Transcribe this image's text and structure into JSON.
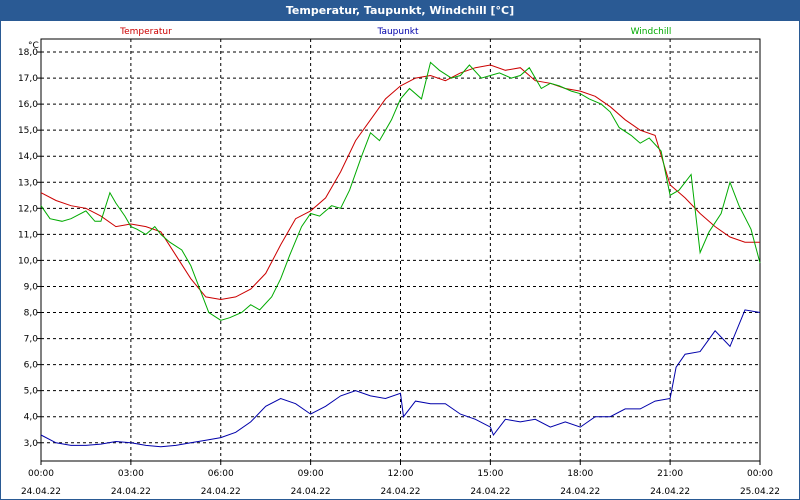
{
  "window": {
    "title": "Temperatur, Taupunkt, Windchill [°C]"
  },
  "chart_data": {
    "type": "line",
    "title": "Temperatur, Taupunkt, Windchill [°C]",
    "ylabel": "°C",
    "xlabel": "",
    "ylim": [
      2.3,
      18.5
    ],
    "xlim": [
      0,
      24
    ],
    "grid": true,
    "y_ticks": [
      "3,0",
      "4,0",
      "5,0",
      "6,0",
      "7,0",
      "8,0",
      "9,0",
      "10,0",
      "11,0",
      "12,0",
      "13,0",
      "14,0",
      "15,0",
      "16,0",
      "17,0",
      "18,0"
    ],
    "x_ticks": [
      {
        "time": "00:00",
        "date": "24.04.22"
      },
      {
        "time": "03:00",
        "date": "24.04.22"
      },
      {
        "time": "06:00",
        "date": "24.04.22"
      },
      {
        "time": "09:00",
        "date": "24.04.22"
      },
      {
        "time": "12:00",
        "date": "24.04.22"
      },
      {
        "time": "15:00",
        "date": "24.04.22"
      },
      {
        "time": "18:00",
        "date": "24.04.22"
      },
      {
        "time": "21:00",
        "date": "24.04.22"
      },
      {
        "time": "00:00",
        "date": "25.04.22"
      }
    ],
    "series": [
      {
        "name": "Temperatur",
        "color": "#cc0000",
        "x": [
          0,
          0.5,
          1,
          1.5,
          2,
          2.5,
          3,
          3.5,
          4,
          4.5,
          5,
          5.5,
          6,
          6.5,
          7,
          7.5,
          8,
          8.5,
          9,
          9.5,
          10,
          10.5,
          11,
          11.5,
          12,
          12.5,
          13,
          13.5,
          14,
          14.5,
          15,
          15.5,
          16,
          16.5,
          17,
          17.5,
          18,
          18.5,
          19,
          19.5,
          20,
          20.5,
          21,
          21.5,
          22,
          22.5,
          23,
          23.5,
          24
        ],
        "values": [
          12.6,
          12.3,
          12.1,
          12.0,
          11.7,
          11.3,
          11.4,
          11.3,
          11.1,
          10.2,
          9.3,
          8.6,
          8.5,
          8.6,
          8.9,
          9.5,
          10.6,
          11.6,
          11.9,
          12.4,
          13.4,
          14.6,
          15.4,
          16.2,
          16.7,
          17.0,
          17.1,
          16.9,
          17.2,
          17.4,
          17.5,
          17.3,
          17.4,
          16.9,
          16.8,
          16.6,
          16.5,
          16.3,
          15.9,
          15.4,
          15.0,
          14.8,
          12.9,
          12.4,
          11.8,
          11.3,
          10.9,
          10.7,
          10.7
        ]
      },
      {
        "name": "Taupunkt",
        "color": "#0000aa",
        "x": [
          0,
          0.5,
          1,
          1.5,
          2,
          2.5,
          3,
          3.5,
          4,
          4.5,
          5,
          5.5,
          6,
          6.5,
          7,
          7.5,
          8,
          8.5,
          9,
          9.5,
          10,
          10.5,
          11,
          11.5,
          12,
          12.1,
          12.5,
          13,
          13.5,
          14,
          14.5,
          15,
          15.1,
          15.5,
          16,
          16.5,
          17,
          17.5,
          18,
          18.5,
          19,
          19.5,
          20,
          20.5,
          21,
          21.2,
          21.5,
          22,
          22.5,
          23,
          23.5,
          24
        ],
        "values": [
          3.3,
          3.0,
          2.9,
          2.9,
          2.95,
          3.05,
          3.0,
          2.9,
          2.85,
          2.9,
          3.0,
          3.1,
          3.2,
          3.4,
          3.8,
          4.4,
          4.7,
          4.5,
          4.1,
          4.4,
          4.8,
          5.0,
          4.8,
          4.7,
          4.9,
          4.0,
          4.6,
          4.5,
          4.5,
          4.1,
          3.9,
          3.6,
          3.3,
          3.9,
          3.8,
          3.9,
          3.6,
          3.8,
          3.6,
          4.0,
          4.0,
          4.3,
          4.3,
          4.6,
          4.7,
          5.9,
          6.4,
          6.5,
          7.3,
          6.7,
          8.1,
          8.0
        ]
      },
      {
        "name": "Windchill",
        "color": "#00aa00",
        "x": [
          0,
          0.3,
          0.7,
          1,
          1.5,
          1.8,
          2,
          2.3,
          2.5,
          2.8,
          3,
          3.2,
          3.5,
          3.8,
          4,
          4.3,
          4.7,
          5,
          5.3,
          5.6,
          6,
          6.3,
          6.7,
          7,
          7.3,
          7.7,
          8,
          8.3,
          8.7,
          9,
          9.3,
          9.7,
          10,
          10.3,
          10.7,
          11,
          11.3,
          11.7,
          12,
          12.3,
          12.7,
          13,
          13.3,
          13.7,
          14,
          14.3,
          14.7,
          15,
          15.3,
          15.7,
          16,
          16.3,
          16.7,
          17,
          17.3,
          17.7,
          18,
          18.3,
          18.7,
          19,
          19.3,
          19.7,
          20,
          20.3,
          20.7,
          21,
          21.3,
          21.7,
          22,
          22.3,
          22.7,
          23,
          23.3,
          23.7,
          24
        ],
        "values": [
          12.1,
          11.6,
          11.5,
          11.6,
          11.9,
          11.5,
          11.5,
          12.6,
          12.2,
          11.7,
          11.3,
          11.2,
          11.0,
          11.3,
          11.0,
          10.7,
          10.4,
          9.8,
          8.9,
          8.0,
          7.7,
          7.8,
          8.0,
          8.3,
          8.1,
          8.6,
          9.3,
          10.2,
          11.3,
          11.8,
          11.7,
          12.1,
          12.0,
          12.7,
          14.0,
          14.9,
          14.6,
          15.4,
          16.2,
          16.6,
          16.2,
          17.6,
          17.3,
          17.0,
          17.1,
          17.5,
          17.0,
          17.1,
          17.2,
          17.0,
          17.1,
          17.4,
          16.6,
          16.8,
          16.7,
          16.5,
          16.4,
          16.2,
          16.0,
          15.7,
          15.1,
          14.8,
          14.5,
          14.7,
          14.2,
          12.5,
          12.7,
          13.3,
          10.3,
          11.1,
          11.8,
          13.0,
          12.1,
          11.2,
          9.9
        ]
      }
    ]
  }
}
